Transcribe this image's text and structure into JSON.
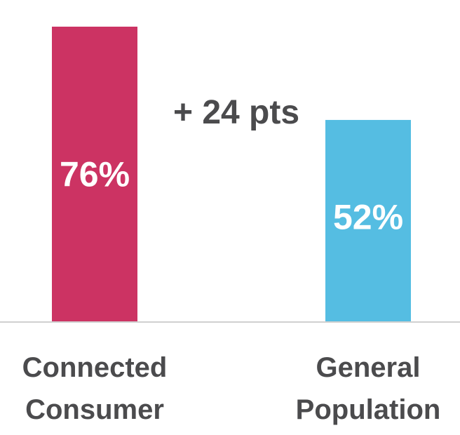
{
  "chart_data": {
    "type": "bar",
    "categories": [
      "Connected Consumer",
      "General Population"
    ],
    "category_lines": [
      [
        "Connected",
        "Consumer"
      ],
      [
        "General",
        "Population"
      ]
    ],
    "values": [
      76,
      52
    ],
    "value_labels": [
      "76%",
      "52%"
    ],
    "colors": [
      "#cc3363",
      "#55bde2"
    ],
    "annotation": "+ 24 pts",
    "title": "",
    "xlabel": "",
    "ylabel": "",
    "ylim": [
      0,
      76
    ],
    "grid": false,
    "legend": "none"
  },
  "colors": {
    "baseline": "#d0d0d0",
    "text": "#4b4b4d"
  }
}
